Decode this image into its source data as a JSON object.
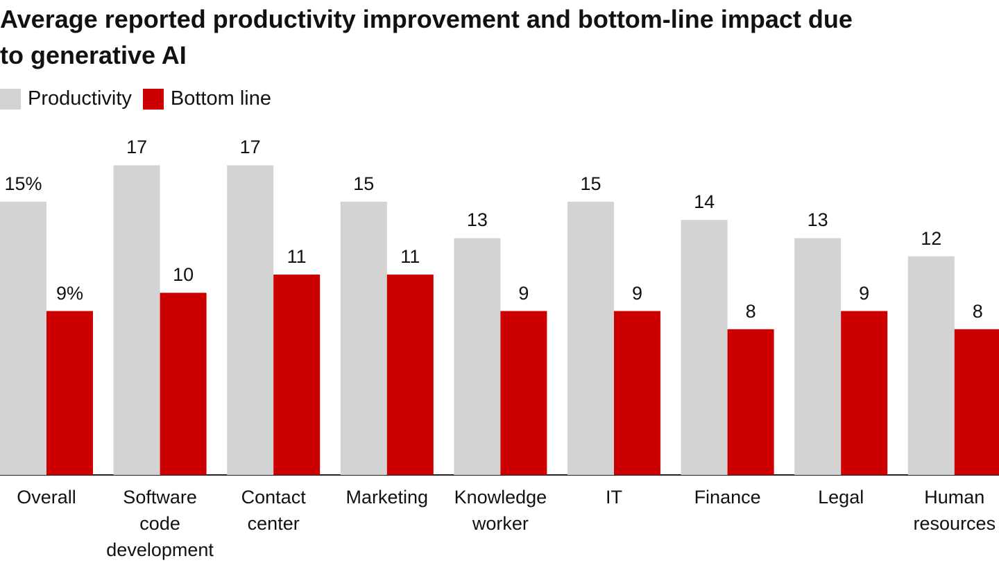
{
  "chart_data": {
    "type": "bar",
    "title": "Average reported productivity improvement and bottom-line impact due to generative AI",
    "categories": [
      "Overall",
      "Software code development",
      "Contact center",
      "Marketing",
      "Knowledge worker",
      "IT",
      "Finance",
      "Legal",
      "Human resources"
    ],
    "series": [
      {
        "name": "Productivity",
        "color": "#d3d3d3",
        "values": [
          15,
          17,
          17,
          15,
          13,
          15,
          14,
          13,
          12
        ],
        "value_labels": [
          "15%",
          "17",
          "17",
          "15",
          "13",
          "15",
          "14",
          "13",
          "12"
        ]
      },
      {
        "name": "Bottom line",
        "color": "#cc0000",
        "values": [
          9,
          10,
          11,
          11,
          9,
          9,
          8,
          9,
          8
        ],
        "value_labels": [
          "9%",
          "10",
          "11",
          "11",
          "9",
          "9",
          "8",
          "9",
          "8"
        ]
      }
    ]
  }
}
